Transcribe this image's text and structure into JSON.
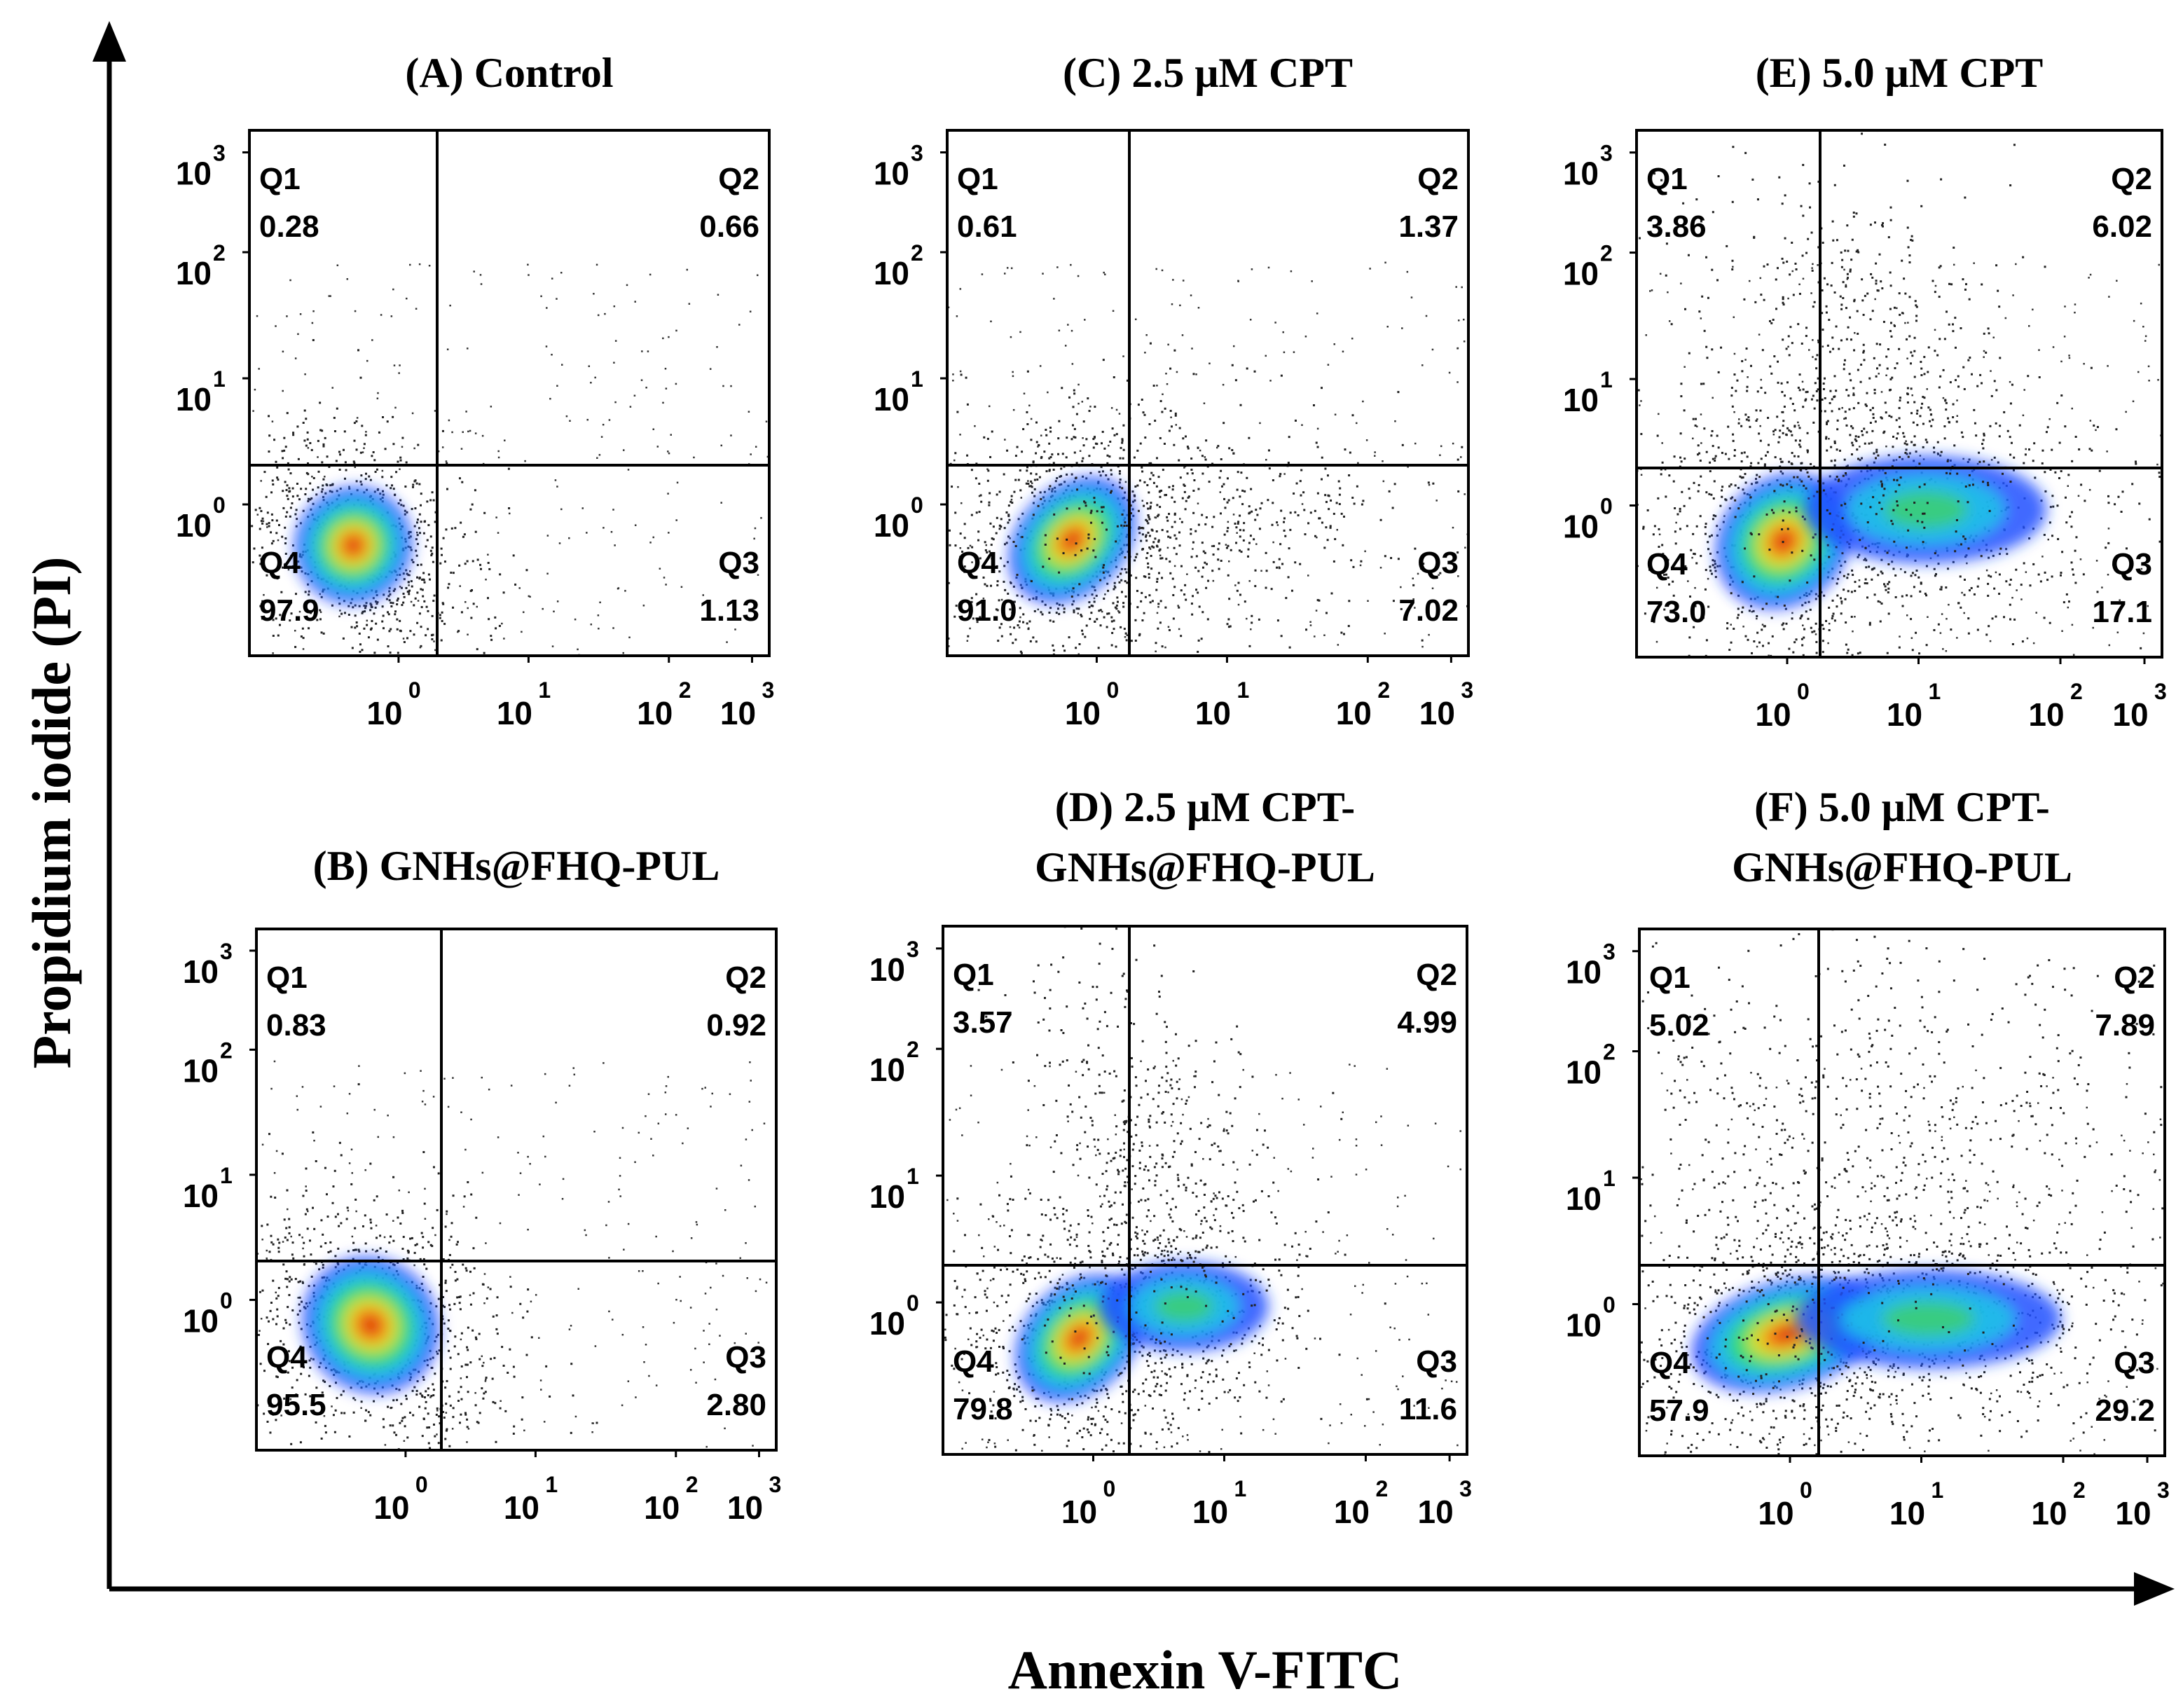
{
  "figure": {
    "ylabel": "Propidium iodide (PI)",
    "xlabel": "Annexin V-FITC"
  },
  "chart_data": [
    {
      "type": "scatter",
      "title": "(A) Control",
      "xlabel": "",
      "ylabel": "",
      "xscale": "log",
      "yscale": "log",
      "xlim": [
        0.1,
        1000
      ],
      "ylim": [
        0.1,
        1000
      ],
      "x_ticks": [
        {
          "base": "10",
          "exp": "0"
        },
        {
          "base": "10",
          "exp": "1"
        },
        {
          "base": "10",
          "exp": "2"
        },
        {
          "base": "10",
          "exp": "3"
        }
      ],
      "y_ticks": [
        {
          "base": "10",
          "exp": "0"
        },
        {
          "base": "10",
          "exp": "1"
        },
        {
          "base": "10",
          "exp": "2"
        },
        {
          "base": "10",
          "exp": "3"
        }
      ],
      "quadrants": {
        "Q1": "0.28",
        "Q2": "0.66",
        "Q3": "1.13",
        "Q4": "97.9"
      }
    },
    {
      "type": "scatter",
      "title": "(B) GNHs@FHQ-PUL",
      "xlabel": "",
      "ylabel": "",
      "xscale": "log",
      "yscale": "log",
      "xlim": [
        0.1,
        1000
      ],
      "ylim": [
        0.1,
        1000
      ],
      "x_ticks": [
        {
          "base": "10",
          "exp": "0"
        },
        {
          "base": "10",
          "exp": "1"
        },
        {
          "base": "10",
          "exp": "2"
        },
        {
          "base": "10",
          "exp": "3"
        }
      ],
      "y_ticks": [
        {
          "base": "10",
          "exp": "0"
        },
        {
          "base": "10",
          "exp": "1"
        },
        {
          "base": "10",
          "exp": "2"
        },
        {
          "base": "10",
          "exp": "3"
        }
      ],
      "quadrants": {
        "Q1": "0.83",
        "Q2": "0.92",
        "Q3": "2.80",
        "Q4": "95.5"
      }
    },
    {
      "type": "scatter",
      "title": "(C) 2.5 μM CPT",
      "xlabel": "",
      "ylabel": "",
      "xscale": "log",
      "yscale": "log",
      "xlim": [
        0.1,
        1000
      ],
      "ylim": [
        0.1,
        1000
      ],
      "x_ticks": [
        {
          "base": "10",
          "exp": "0"
        },
        {
          "base": "10",
          "exp": "1"
        },
        {
          "base": "10",
          "exp": "2"
        },
        {
          "base": "10",
          "exp": "3"
        }
      ],
      "y_ticks": [
        {
          "base": "10",
          "exp": "0"
        },
        {
          "base": "10",
          "exp": "1"
        },
        {
          "base": "10",
          "exp": "2"
        },
        {
          "base": "10",
          "exp": "3"
        }
      ],
      "quadrants": {
        "Q1": "0.61",
        "Q2": "1.37",
        "Q3": "7.02",
        "Q4": "91.0"
      }
    },
    {
      "type": "scatter",
      "title": "(D) 2.5 μM CPT-\nGNHs@FHQ-PUL",
      "xlabel": "",
      "ylabel": "",
      "xscale": "log",
      "yscale": "log",
      "xlim": [
        0.1,
        1000
      ],
      "ylim": [
        0.1,
        1000
      ],
      "x_ticks": [
        {
          "base": "10",
          "exp": "0"
        },
        {
          "base": "10",
          "exp": "1"
        },
        {
          "base": "10",
          "exp": "2"
        },
        {
          "base": "10",
          "exp": "3"
        }
      ],
      "y_ticks": [
        {
          "base": "10",
          "exp": "0"
        },
        {
          "base": "10",
          "exp": "1"
        },
        {
          "base": "10",
          "exp": "2"
        },
        {
          "base": "10",
          "exp": "3"
        }
      ],
      "quadrants": {
        "Q1": "3.57",
        "Q2": "4.99",
        "Q3": "11.6",
        "Q4": "79.8"
      }
    },
    {
      "type": "scatter",
      "title": "(E) 5.0 μM CPT",
      "xlabel": "",
      "ylabel": "",
      "xscale": "log",
      "yscale": "log",
      "xlim": [
        0.1,
        1000
      ],
      "ylim": [
        0.1,
        1000
      ],
      "x_ticks": [
        {
          "base": "10",
          "exp": "0"
        },
        {
          "base": "10",
          "exp": "1"
        },
        {
          "base": "10",
          "exp": "2"
        },
        {
          "base": "10",
          "exp": "3"
        }
      ],
      "y_ticks": [
        {
          "base": "10",
          "exp": "0"
        },
        {
          "base": "10",
          "exp": "1"
        },
        {
          "base": "10",
          "exp": "2"
        },
        {
          "base": "10",
          "exp": "3"
        }
      ],
      "quadrants": {
        "Q1": "3.86",
        "Q2": "6.02",
        "Q3": "17.1",
        "Q4": "73.0"
      }
    },
    {
      "type": "scatter",
      "title": "(F) 5.0 μM CPT-\nGNHs@FHQ-PUL",
      "xlabel": "",
      "ylabel": "",
      "xscale": "log",
      "yscale": "log",
      "xlim": [
        0.1,
        1000
      ],
      "ylim": [
        0.1,
        1000
      ],
      "x_ticks": [
        {
          "base": "10",
          "exp": "0"
        },
        {
          "base": "10",
          "exp": "1"
        },
        {
          "base": "10",
          "exp": "2"
        },
        {
          "base": "10",
          "exp": "3"
        }
      ],
      "y_ticks": [
        {
          "base": "10",
          "exp": "0"
        },
        {
          "base": "10",
          "exp": "1"
        },
        {
          "base": "10",
          "exp": "2"
        },
        {
          "base": "10",
          "exp": "3"
        }
      ],
      "quadrants": {
        "Q1": "5.02",
        "Q2": "7.89",
        "Q3": "29.2",
        "Q4": "57.9"
      }
    }
  ]
}
